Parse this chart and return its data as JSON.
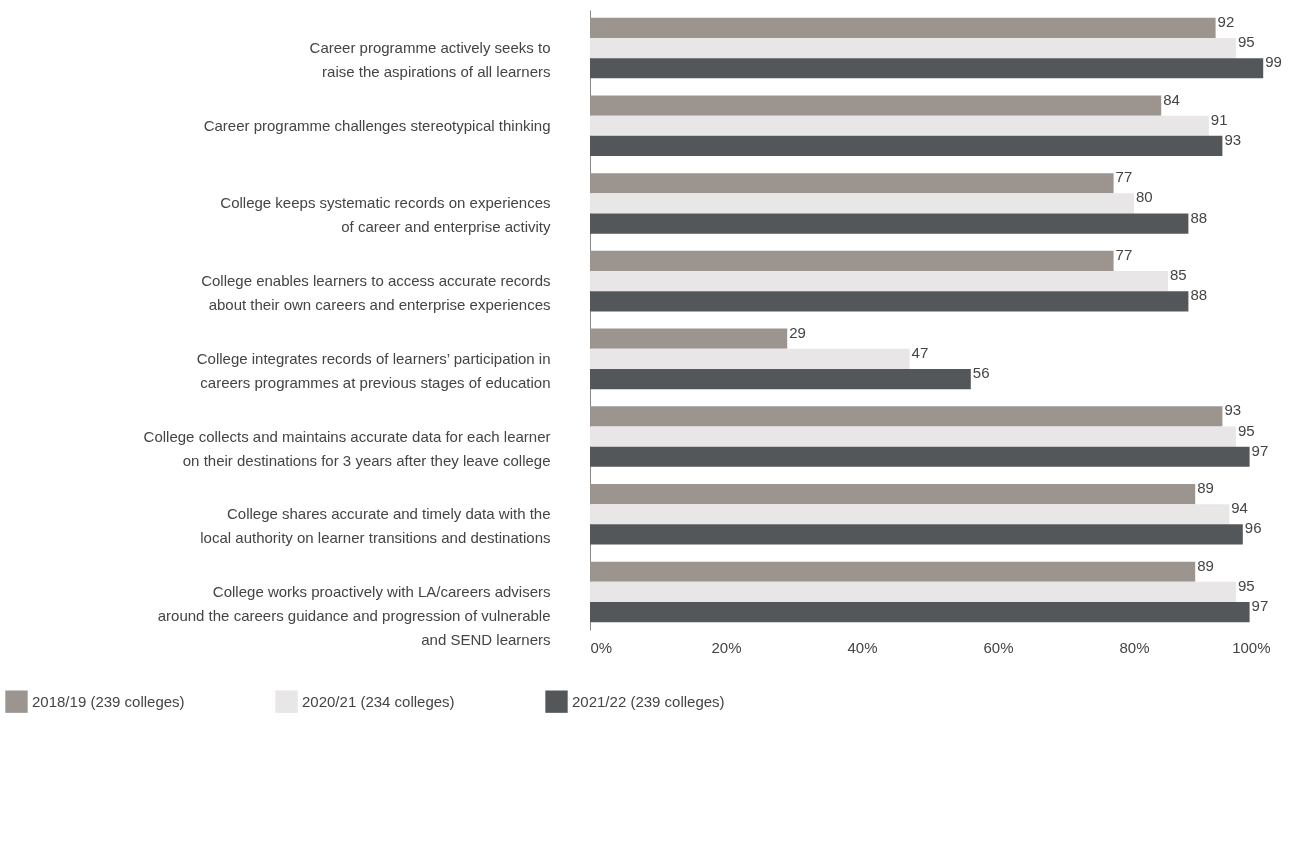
{
  "chart_data": {
    "type": "bar",
    "orientation": "horizontal",
    "categories": [
      "Career programme actively seeks to\nraise the aspirations of all learners",
      "Career programme challenges stereotypical thinking",
      "College keeps systematic records on experiences\nof career and enterprise activity",
      "College enables learners to access accurate records\nabout  their own careers and enterprise experiences",
      "College integrates records of learners’ participation in\ncareers programmes at previous stages of education",
      "College collects and maintains accurate data for each learner\non their destinations for 3 years after they leave college",
      "College shares accurate and timely data with the\nlocal authority on learner transitions and destinations",
      "College works proactively with LA/careers advisers\naround the careers guidance and progression of vulnerable\nand SEND learners"
    ],
    "series": [
      {
        "name": "2018/19 (239 colleges)",
        "color": "#9b948f",
        "values": [
          92,
          84,
          77,
          77,
          29,
          93,
          89,
          89
        ]
      },
      {
        "name": "2020/21 (234 colleges)",
        "color": "#e8e6e6",
        "values": [
          95,
          91,
          80,
          85,
          47,
          95,
          94,
          95
        ]
      },
      {
        "name": "2021/22 (239 colleges)",
        "color": "#54575a",
        "values": [
          99,
          93,
          88,
          88,
          56,
          97,
          96,
          97
        ]
      }
    ],
    "xlim": [
      0,
      100
    ],
    "xticks": [
      {
        "value": 0,
        "label": "0%"
      },
      {
        "value": 20,
        "label": "20%"
      },
      {
        "value": 40,
        "label": "40%"
      },
      {
        "value": 60,
        "label": "60%"
      },
      {
        "value": 80,
        "label": "80%"
      },
      {
        "value": 100,
        "label": "100%"
      }
    ],
    "data_labels": true,
    "legend": "bottom left",
    "grid": false
  }
}
